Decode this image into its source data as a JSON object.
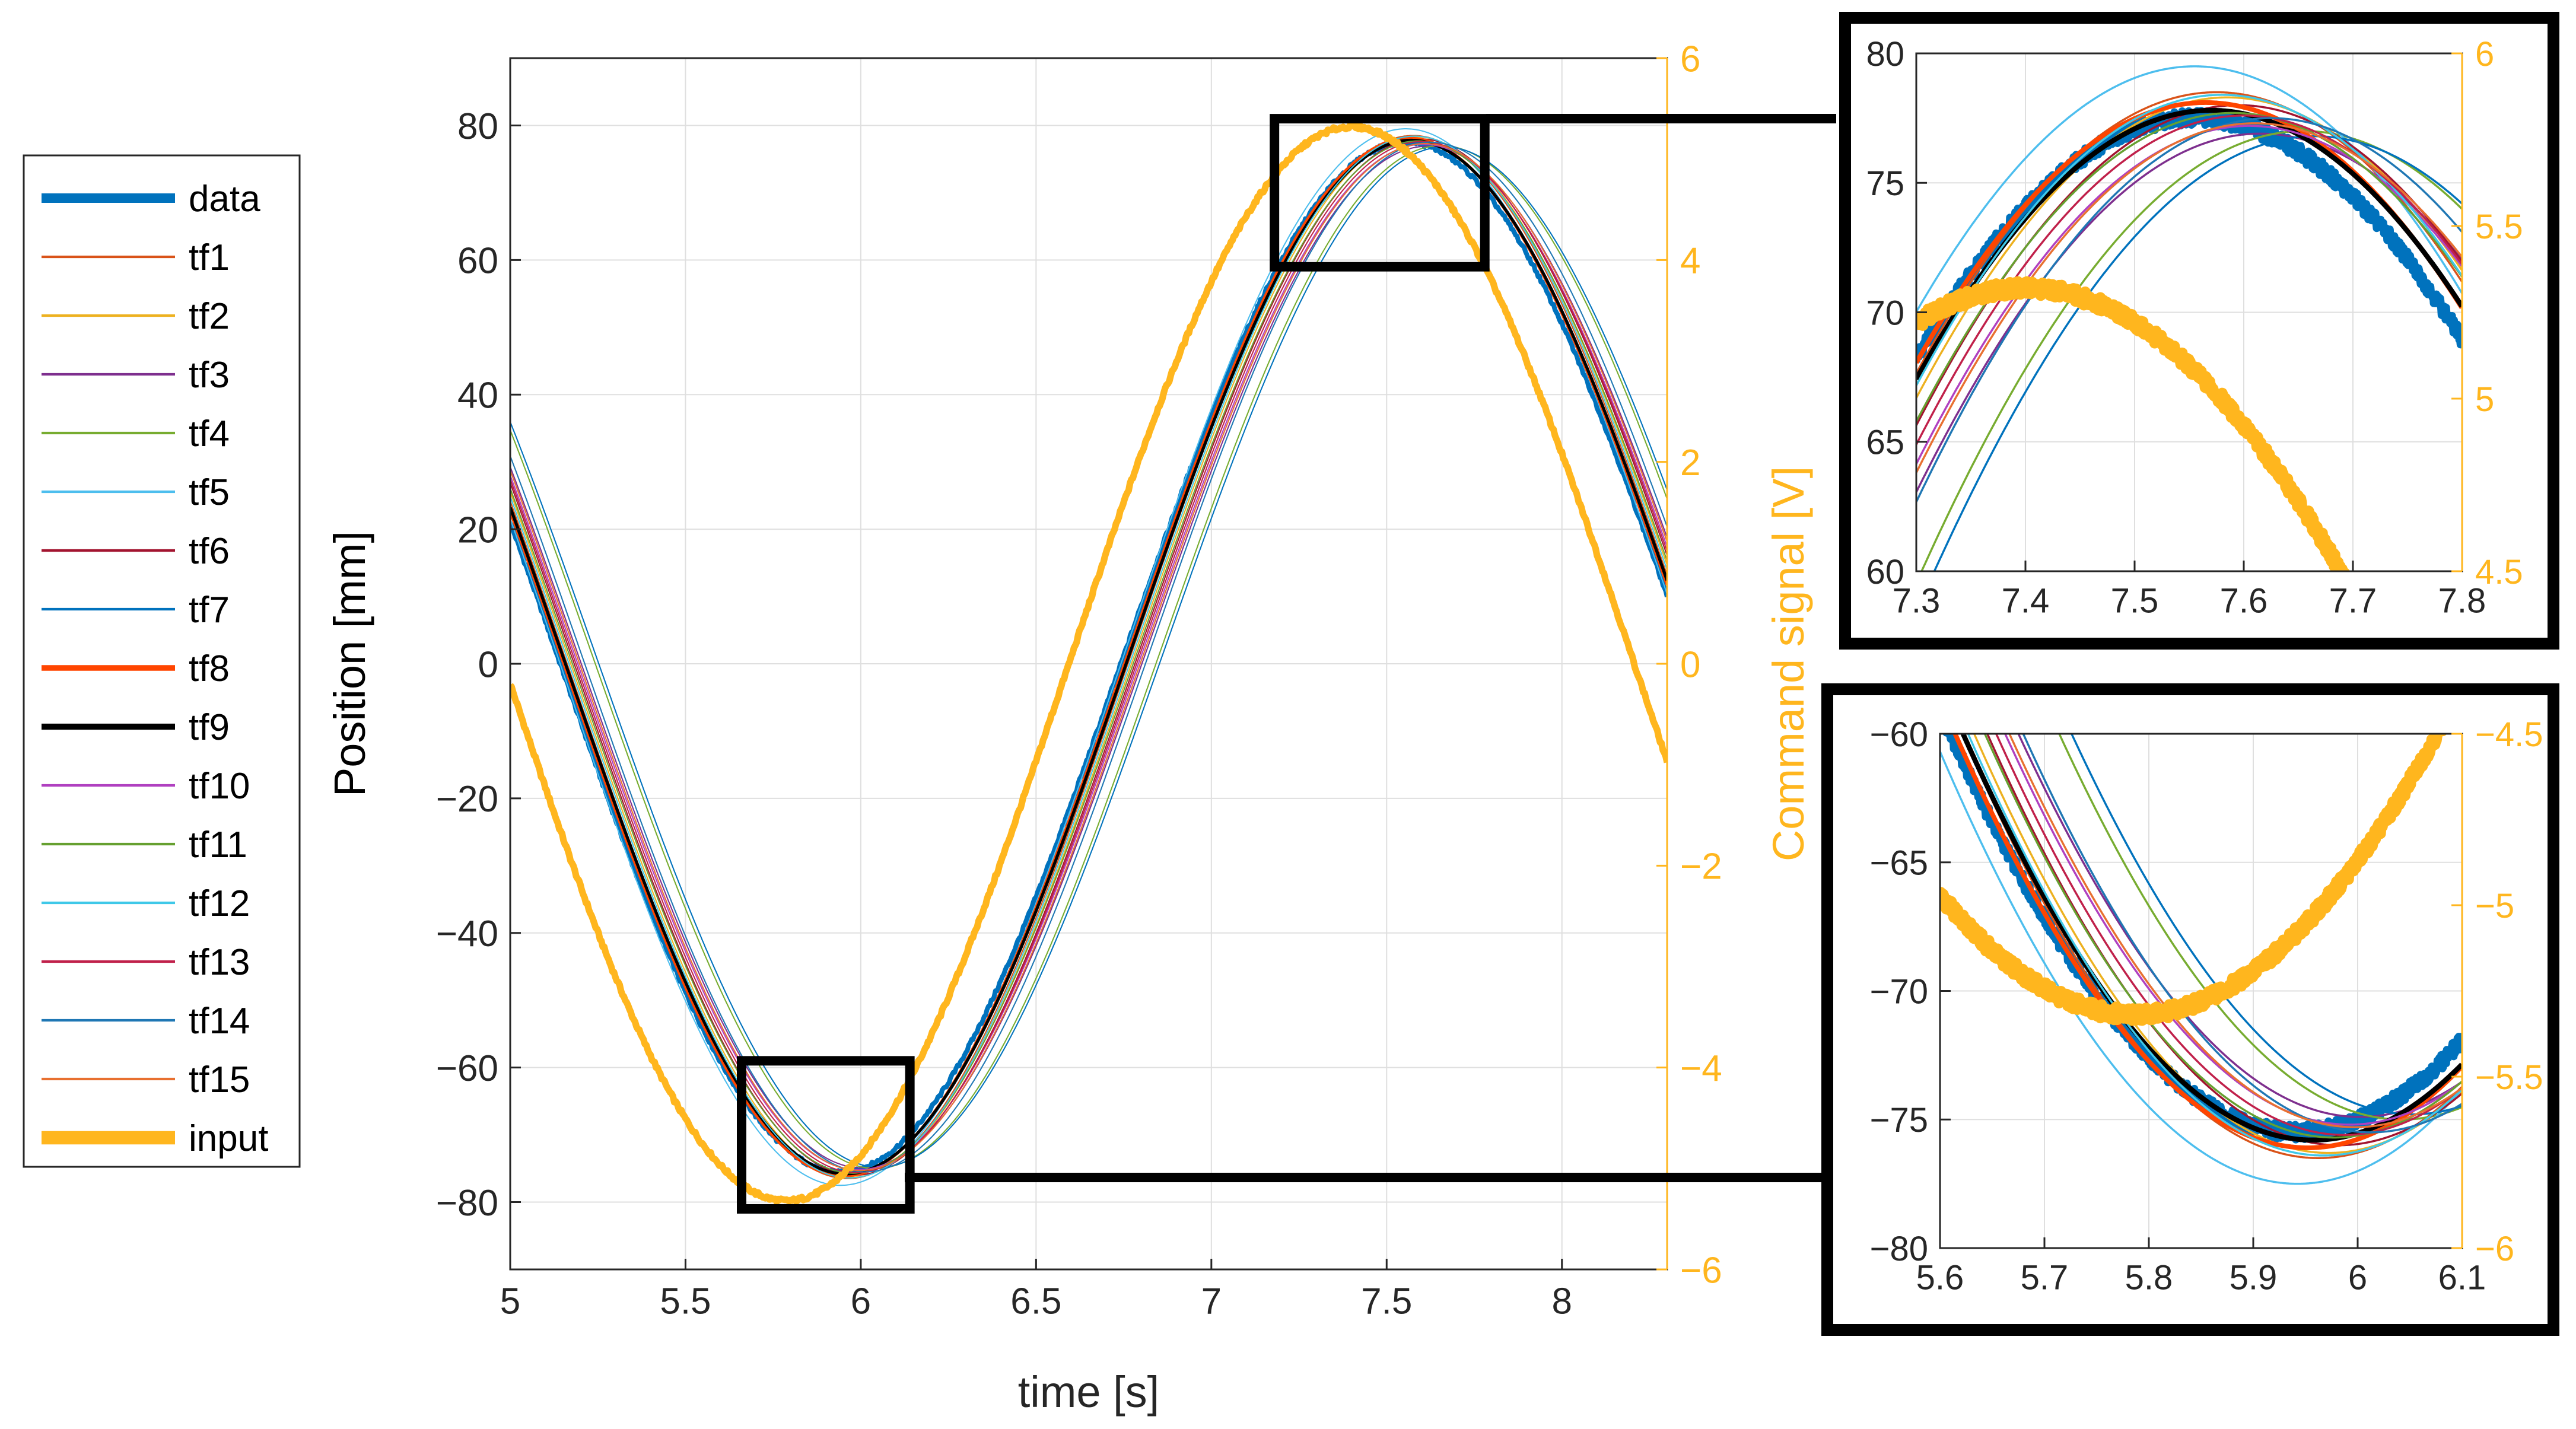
{
  "chart_data": [
    {
      "id": "main",
      "type": "line",
      "xlabel": "time [s]",
      "ylabel": "Position [mm]",
      "y2label": "Command signal [V]",
      "xlim": [
        5,
        8.3
      ],
      "ylim": [
        -90,
        90
      ],
      "y2lim": [
        -6,
        6
      ],
      "xticks": [
        5,
        5.5,
        6,
        6.5,
        7,
        7.5,
        8
      ],
      "xtick_labels": [
        "5",
        "5.5",
        "6",
        "6.5",
        "7",
        "7.5",
        "8"
      ],
      "yticks": [
        80,
        60,
        40,
        20,
        0,
        -20,
        -40,
        -60,
        -80
      ],
      "ytick_labels": [
        "80",
        "60",
        "40",
        "20",
        "0",
        "−20",
        "−40",
        "−60",
        "−80"
      ],
      "y2ticks": [
        6,
        4,
        2,
        0,
        -2,
        -4,
        -6
      ],
      "y2tick_labels": [
        "6",
        "4",
        "2",
        "0",
        "−2",
        "−4",
        "−6"
      ],
      "grid": true,
      "zoom_boxes": [
        {
          "xlim": [
            7.18,
            7.78
          ],
          "ylim": [
            59,
            81
          ]
        },
        {
          "xlim": [
            5.66,
            6.14
          ],
          "ylim": [
            -81,
            -59
          ]
        }
      ]
    },
    {
      "id": "zoom-top",
      "type": "line",
      "xlim": [
        7.3,
        7.8
      ],
      "ylim": [
        60,
        80
      ],
      "y2lim": [
        4.5,
        6
      ],
      "xticks": [
        7.3,
        7.4,
        7.5,
        7.6,
        7.7,
        7.8
      ],
      "xtick_labels": [
        "7.3",
        "7.4",
        "7.5",
        "7.6",
        "7.7",
        "7.8"
      ],
      "yticks": [
        80,
        75,
        70,
        65,
        60
      ],
      "ytick_labels": [
        "80",
        "75",
        "70",
        "65",
        "60"
      ],
      "y2ticks": [
        6,
        5.5,
        5,
        4.5
      ],
      "y2tick_labels": [
        "6",
        "5.5",
        "5",
        "4.5"
      ],
      "grid": true
    },
    {
      "id": "zoom-bottom",
      "type": "line",
      "xlim": [
        5.6,
        6.1
      ],
      "ylim": [
        -80,
        -60
      ],
      "y2lim": [
        -6,
        -4.5
      ],
      "xticks": [
        5.6,
        5.7,
        5.8,
        5.9,
        6,
        6.1
      ],
      "xtick_labels": [
        "5.6",
        "5.7",
        "5.8",
        "5.9",
        "6",
        "6.1"
      ],
      "yticks": [
        -60,
        -65,
        -70,
        -75,
        -80
      ],
      "ytick_labels": [
        "−60",
        "−65",
        "−70",
        "−75",
        "−80"
      ],
      "y2ticks": [
        -4.5,
        -5,
        -5.5,
        -6
      ],
      "y2tick_labels": [
        "−4.5",
        "−5",
        "−5.5",
        "−6"
      ],
      "grid": true
    }
  ],
  "signal_model": {
    "amplitude_mm": 76.5,
    "offset_mm": 1,
    "omega_rad_s": 1.948,
    "data_peak_time_s": 7.555,
    "input_amplitude_V": 5.32,
    "input_peak_time_s": 7.4
  },
  "series": [
    {
      "name": "data",
      "color": "#0072BD",
      "width": 5,
      "peak_shift": 0.0,
      "amp_delta": 0.0,
      "noisy": true
    },
    {
      "name": "tf1",
      "color": "#D95319",
      "width": 1.3,
      "peak_shift": 0.02,
      "amp_delta": 1.0
    },
    {
      "name": "tf2",
      "color": "#EDB120",
      "width": 1.3,
      "peak_shift": 0.03,
      "amp_delta": 0.8
    },
    {
      "name": "tf3",
      "color": "#7E2F8E",
      "width": 1.3,
      "peak_shift": 0.06,
      "amp_delta": -0.6
    },
    {
      "name": "tf4",
      "color": "#77AC30",
      "width": 1.3,
      "peak_shift": 0.1,
      "amp_delta": -0.5
    },
    {
      "name": "tf5",
      "color": "#4DBEEE",
      "width": 1.3,
      "peak_shift": 0.0,
      "amp_delta": 2.0
    },
    {
      "name": "tf6",
      "color": "#A2142F",
      "width": 1.3,
      "peak_shift": 0.04,
      "amp_delta": 0.5
    },
    {
      "name": "tf7",
      "color": "#0072BD",
      "width": 1.3,
      "peak_shift": 0.11,
      "amp_delta": -0.7
    },
    {
      "name": "tf8",
      "color": "#FF4500",
      "width": 3,
      "peak_shift": 0.01,
      "amp_delta": 0.6
    },
    {
      "name": "tf9",
      "color": "#000000",
      "width": 3.2,
      "peak_shift": 0.015,
      "amp_delta": 0.3
    },
    {
      "name": "tf10",
      "color": "#B040C0",
      "width": 1.3,
      "peak_shift": 0.05,
      "amp_delta": -0.3
    },
    {
      "name": "tf11",
      "color": "#66A030",
      "width": 1.3,
      "peak_shift": 0.035,
      "amp_delta": 0.2
    },
    {
      "name": "tf12",
      "color": "#3FC8E8",
      "width": 1.3,
      "peak_shift": 0.025,
      "amp_delta": 0.9
    },
    {
      "name": "tf13",
      "color": "#C0204A",
      "width": 1.3,
      "peak_shift": 0.045,
      "amp_delta": 0.1
    },
    {
      "name": "tf14",
      "color": "#1F77B4",
      "width": 1.3,
      "peak_shift": 0.07,
      "amp_delta": 0.0
    },
    {
      "name": "tf15",
      "color": "#E87030",
      "width": 1.3,
      "peak_shift": 0.055,
      "amp_delta": -0.2
    },
    {
      "name": "input",
      "color": "#FFB61E",
      "width": 7,
      "is_input": true
    }
  ],
  "legend": {
    "entries": [
      "data",
      "tf1",
      "tf2",
      "tf3",
      "tf4",
      "tf5",
      "tf6",
      "tf7",
      "tf8",
      "tf9",
      "tf10",
      "tf11",
      "tf12",
      "tf13",
      "tf14",
      "tf15",
      "input"
    ]
  },
  "colors": {
    "axis": "#262626",
    "input_axis": "#FFB61E",
    "grid": "#DFDFDF",
    "connector": "#000000"
  }
}
